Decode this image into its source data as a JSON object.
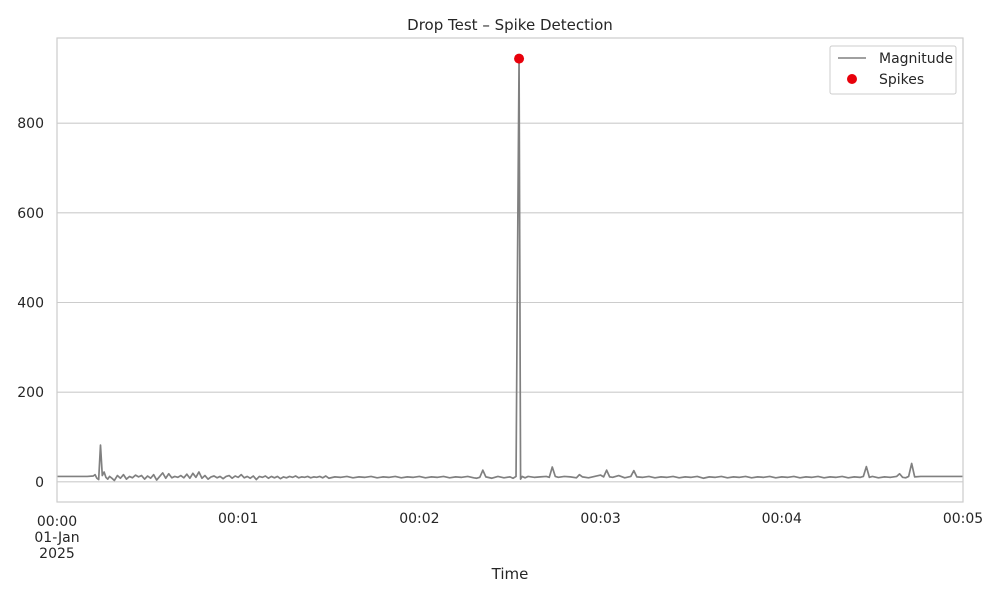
{
  "chart_data": {
    "type": "line",
    "title": "Drop Test – Spike Detection",
    "xlabel": "Time",
    "ylabel": "",
    "xlim_seconds": [
      0,
      300
    ],
    "ylim": [
      -45,
      990
    ],
    "grid": "horizontal",
    "legend_placement": "top-right",
    "x_ticks": [
      {
        "seconds": 0,
        "lines": [
          "00:00",
          "01-Jan",
          "2025"
        ]
      },
      {
        "seconds": 60,
        "lines": [
          "00:01"
        ]
      },
      {
        "seconds": 120,
        "lines": [
          "00:02"
        ]
      },
      {
        "seconds": 180,
        "lines": [
          "00:03"
        ]
      },
      {
        "seconds": 240,
        "lines": [
          "00:04"
        ]
      },
      {
        "seconds": 300,
        "lines": [
          "00:05"
        ]
      }
    ],
    "y_ticks": [
      {
        "value": 0,
        "label": "0"
      },
      {
        "value": 200,
        "label": "200"
      },
      {
        "value": 400,
        "label": "400"
      },
      {
        "value": 600,
        "label": "600"
      },
      {
        "value": 800,
        "label": "800"
      }
    ],
    "series": [
      {
        "name": "Magnitude",
        "kind": "line",
        "color": "#808080",
        "points": [
          [
            0,
            12
          ],
          [
            5,
            12
          ],
          [
            10,
            12
          ],
          [
            12,
            13
          ],
          [
            12.6,
            16
          ],
          [
            13.2,
            8
          ],
          [
            13.8,
            5
          ],
          [
            14.4,
            82
          ],
          [
            15,
            14
          ],
          [
            15.6,
            22
          ],
          [
            16.2,
            10
          ],
          [
            16.8,
            6
          ],
          [
            17.4,
            12
          ],
          [
            18,
            9
          ],
          [
            19,
            3
          ],
          [
            20,
            14
          ],
          [
            21,
            8
          ],
          [
            22,
            16
          ],
          [
            23,
            6
          ],
          [
            24,
            12
          ],
          [
            25,
            9
          ],
          [
            26,
            15
          ],
          [
            27,
            11
          ],
          [
            28,
            14
          ],
          [
            29,
            6
          ],
          [
            30,
            13
          ],
          [
            31,
            8
          ],
          [
            32,
            16
          ],
          [
            33,
            4
          ],
          [
            34,
            12
          ],
          [
            35,
            20
          ],
          [
            36,
            8
          ],
          [
            37,
            18
          ],
          [
            38,
            9
          ],
          [
            39,
            12
          ],
          [
            40,
            10
          ],
          [
            41,
            14
          ],
          [
            42,
            9
          ],
          [
            43,
            17
          ],
          [
            44,
            8
          ],
          [
            45,
            19
          ],
          [
            46,
            10
          ],
          [
            47,
            22
          ],
          [
            48,
            8
          ],
          [
            49,
            14
          ],
          [
            50,
            6
          ],
          [
            51,
            11
          ],
          [
            52,
            13
          ],
          [
            53,
            9
          ],
          [
            54,
            12
          ],
          [
            55,
            7
          ],
          [
            56,
            12
          ],
          [
            57,
            14
          ],
          [
            58,
            8
          ],
          [
            59,
            13
          ],
          [
            60,
            10
          ],
          [
            61,
            16
          ],
          [
            62,
            9
          ],
          [
            63,
            12
          ],
          [
            64,
            8
          ],
          [
            65,
            13
          ],
          [
            66,
            5
          ],
          [
            67,
            12
          ],
          [
            68,
            10
          ],
          [
            69,
            13
          ],
          [
            70,
            8
          ],
          [
            71,
            12
          ],
          [
            72,
            9
          ],
          [
            73,
            12
          ],
          [
            74,
            7
          ],
          [
            75,
            11
          ],
          [
            76,
            9
          ],
          [
            77,
            12
          ],
          [
            78,
            10
          ],
          [
            79,
            13
          ],
          [
            80,
            9
          ],
          [
            81,
            11
          ],
          [
            82,
            10
          ],
          [
            83,
            12
          ],
          [
            84,
            9
          ],
          [
            85,
            11
          ],
          [
            86,
            10
          ],
          [
            87,
            12
          ],
          [
            88,
            9
          ],
          [
            89,
            13
          ],
          [
            90,
            8
          ],
          [
            92,
            11
          ],
          [
            94,
            10
          ],
          [
            96,
            12
          ],
          [
            98,
            9
          ],
          [
            100,
            11
          ],
          [
            102,
            10
          ],
          [
            104,
            12
          ],
          [
            106,
            9
          ],
          [
            108,
            11
          ],
          [
            110,
            10
          ],
          [
            112,
            12
          ],
          [
            114,
            9
          ],
          [
            116,
            11
          ],
          [
            118,
            10
          ],
          [
            120,
            12
          ],
          [
            122,
            9
          ],
          [
            124,
            11
          ],
          [
            126,
            10
          ],
          [
            128,
            12
          ],
          [
            130,
            9
          ],
          [
            132,
            11
          ],
          [
            134,
            10
          ],
          [
            136,
            12
          ],
          [
            138,
            9
          ],
          [
            139,
            8
          ],
          [
            140,
            10
          ],
          [
            141,
            26
          ],
          [
            142,
            11
          ],
          [
            144,
            8
          ],
          [
            146,
            12
          ],
          [
            148,
            9
          ],
          [
            150,
            11
          ],
          [
            151,
            8
          ],
          [
            152,
            12
          ],
          [
            152.5,
            500
          ],
          [
            153,
            944
          ],
          [
            153.5,
            6
          ],
          [
            154,
            12
          ],
          [
            155,
            9
          ],
          [
            156,
            12
          ],
          [
            158,
            10
          ],
          [
            160,
            11
          ],
          [
            162,
            12
          ],
          [
            163,
            10
          ],
          [
            164,
            33
          ],
          [
            165,
            12
          ],
          [
            166,
            10
          ],
          [
            168,
            12
          ],
          [
            170,
            11
          ],
          [
            172,
            9
          ],
          [
            173,
            16
          ],
          [
            174,
            11
          ],
          [
            176,
            9
          ],
          [
            178,
            12
          ],
          [
            180,
            15
          ],
          [
            181,
            11
          ],
          [
            182,
            26
          ],
          [
            183,
            11
          ],
          [
            184,
            10
          ],
          [
            186,
            14
          ],
          [
            188,
            9
          ],
          [
            190,
            12
          ],
          [
            191,
            25
          ],
          [
            192,
            11
          ],
          [
            194,
            10
          ],
          [
            196,
            12
          ],
          [
            198,
            9
          ],
          [
            200,
            11
          ],
          [
            202,
            10
          ],
          [
            204,
            12
          ],
          [
            206,
            9
          ],
          [
            208,
            11
          ],
          [
            210,
            10
          ],
          [
            212,
            12
          ],
          [
            214,
            8
          ],
          [
            216,
            11
          ],
          [
            218,
            10
          ],
          [
            220,
            12
          ],
          [
            222,
            9
          ],
          [
            224,
            11
          ],
          [
            226,
            10
          ],
          [
            228,
            12
          ],
          [
            230,
            9
          ],
          [
            232,
            11
          ],
          [
            234,
            10
          ],
          [
            236,
            12
          ],
          [
            238,
            9
          ],
          [
            240,
            11
          ],
          [
            242,
            10
          ],
          [
            244,
            12
          ],
          [
            246,
            9
          ],
          [
            248,
            11
          ],
          [
            250,
            10
          ],
          [
            252,
            12
          ],
          [
            254,
            9
          ],
          [
            256,
            11
          ],
          [
            258,
            10
          ],
          [
            260,
            12
          ],
          [
            262,
            9
          ],
          [
            264,
            11
          ],
          [
            266,
            10
          ],
          [
            267,
            12
          ],
          [
            268,
            34
          ],
          [
            269,
            10
          ],
          [
            270,
            12
          ],
          [
            272,
            9
          ],
          [
            274,
            11
          ],
          [
            276,
            10
          ],
          [
            278,
            12
          ],
          [
            279,
            18
          ],
          [
            280,
            10
          ],
          [
            281,
            9
          ],
          [
            282,
            12
          ],
          [
            283,
            41
          ],
          [
            284,
            11
          ],
          [
            286,
            12
          ],
          [
            288,
            12
          ],
          [
            290,
            12
          ],
          [
            292,
            12
          ],
          [
            295,
            12
          ],
          [
            300,
            12
          ]
        ]
      },
      {
        "name": "Spikes",
        "kind": "markers",
        "color": "#e8000b",
        "points": [
          [
            153,
            944
          ]
        ]
      }
    ]
  }
}
